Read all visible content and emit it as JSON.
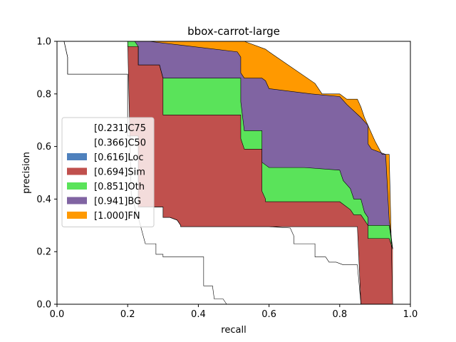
{
  "chart_data": {
    "type": "area",
    "title": "bbox-carrot-large",
    "xlabel": "recall",
    "ylabel": "precision",
    "xlim": [
      0.0,
      1.0
    ],
    "ylim": [
      0.0,
      1.0
    ],
    "xticks": [
      "0.0",
      "0.2",
      "0.4",
      "0.6",
      "0.8",
      "1.0"
    ],
    "yticks": [
      "0.0",
      "0.2",
      "0.4",
      "0.6",
      "0.8",
      "1.0"
    ],
    "grid": false,
    "legend_position": "center-left",
    "legend": [
      {
        "label": "[0.231]C75",
        "color": "#ffffff"
      },
      {
        "label": "[0.366]C50",
        "color": "#ffffff"
      },
      {
        "label": "[0.616]Loc",
        "color": "#4f81bd"
      },
      {
        "label": "[0.694]Sim",
        "color": "#c0504d"
      },
      {
        "label": "[0.851]Oth",
        "color": "#5ae35a"
      },
      {
        "label": "[0.941]BG",
        "color": "#8064a2"
      },
      {
        "label": "[1.000]FN",
        "color": "#ff9900"
      }
    ],
    "series": [
      {
        "name": "[0.231]C75",
        "color": "#ffffff",
        "x": [
          0,
          0.2,
          0.21,
          0.22,
          0.23,
          0.24,
          0.25,
          0.28,
          0.28,
          0.3,
          0.3,
          0.32,
          0.33,
          0.34,
          0.37,
          0.37,
          0.4,
          0.415,
          0.415,
          0.44,
          0.445,
          0.47,
          0.48
        ],
        "y": [
          1.0,
          1.0,
          0.42,
          0.37,
          0.33,
          0.28,
          0.23,
          0.23,
          0.19,
          0.19,
          0.18,
          0.18,
          0.18,
          0.18,
          0.18,
          0.18,
          0.18,
          0.18,
          0.07,
          0.07,
          0.02,
          0.02,
          0.0
        ]
      },
      {
        "name": "[0.366]C50",
        "color": "#ffffff",
        "x": [
          0,
          0.02,
          0.03,
          0.03,
          0.2,
          0.2,
          0.23,
          0.23,
          0.28,
          0.28,
          0.3,
          0.3,
          0.32,
          0.34,
          0.35,
          0.35,
          0.85,
          0.86
        ],
        "y": [
          1.0,
          1.0,
          0.94,
          0.875,
          0.875,
          0.64,
          0.64,
          0.37,
          0.37,
          0.37,
          0.37,
          0.33,
          0.33,
          0.32,
          0.3,
          0.295,
          0.295,
          0.0
        ]
      },
      {
        "name": "[0.616]Loc",
        "color": "#4f81bd",
        "x": [
          0,
          0.02,
          0.03,
          0.03,
          0.2,
          0.2,
          0.23,
          0.23,
          0.28,
          0.28,
          0.3,
          0.3,
          0.32,
          0.34,
          0.35,
          0.35,
          0.6,
          0.66,
          0.67,
          0.67,
          0.73,
          0.73,
          0.76,
          0.77,
          0.79,
          0.81,
          0.85,
          0.86
        ],
        "y": [
          1.0,
          1.0,
          0.94,
          0.875,
          0.875,
          0.64,
          0.64,
          0.37,
          0.37,
          0.37,
          0.37,
          0.33,
          0.33,
          0.32,
          0.3,
          0.295,
          0.295,
          0.29,
          0.26,
          0.23,
          0.23,
          0.18,
          0.18,
          0.16,
          0.16,
          0.15,
          0.15,
          0.0
        ]
      },
      {
        "name": "[0.694]Sim",
        "color": "#c0504d",
        "x": [
          0,
          0.02,
          0.2,
          0.2,
          0.23,
          0.23,
          0.29,
          0.3,
          0.3,
          0.52,
          0.52,
          0.53,
          0.53,
          0.58,
          0.58,
          0.59,
          0.59,
          0.8,
          0.83,
          0.84,
          0.86,
          0.87,
          0.88,
          0.88,
          0.94,
          0.95
        ],
        "y": [
          1.0,
          1.0,
          1.0,
          0.98,
          0.98,
          0.91,
          0.91,
          0.86,
          0.72,
          0.72,
          0.63,
          0.59,
          0.59,
          0.59,
          0.43,
          0.4,
          0.39,
          0.39,
          0.36,
          0.34,
          0.34,
          0.32,
          0.3,
          0.25,
          0.25,
          0.21
        ]
      },
      {
        "name": "[0.851]Oth",
        "color": "#5ae35a",
        "x": [
          0,
          0.22,
          0.23,
          0.23,
          0.29,
          0.3,
          0.3,
          0.52,
          0.52,
          0.53,
          0.53,
          0.58,
          0.58,
          0.59,
          0.6,
          0.7,
          0.8,
          0.81,
          0.83,
          0.84,
          0.86,
          0.87,
          0.88,
          0.88,
          0.94,
          0.95
        ],
        "y": [
          1.0,
          1.0,
          0.98,
          0.91,
          0.91,
          0.86,
          0.86,
          0.86,
          0.77,
          0.66,
          0.66,
          0.66,
          0.54,
          0.53,
          0.52,
          0.52,
          0.51,
          0.47,
          0.44,
          0.4,
          0.4,
          0.35,
          0.33,
          0.3,
          0.3,
          0.21
        ]
      },
      {
        "name": "[0.941]BG",
        "color": "#8064a2",
        "x": [
          0,
          0.22,
          0.25,
          0.26,
          0.51,
          0.52,
          0.52,
          0.53,
          0.58,
          0.59,
          0.6,
          0.72,
          0.8,
          0.82,
          0.86,
          0.88,
          0.88,
          0.89,
          0.93,
          0.94,
          0.95
        ],
        "y": [
          1.0,
          1.0,
          1.0,
          1.0,
          0.96,
          0.94,
          0.88,
          0.86,
          0.86,
          0.85,
          0.82,
          0.8,
          0.79,
          0.76,
          0.71,
          0.68,
          0.61,
          0.59,
          0.57,
          0.32,
          0.21
        ]
      },
      {
        "name": "[1.000]FN",
        "color": "#ff9900",
        "x": [
          0,
          0.26,
          0.53,
          0.59,
          0.6,
          0.73,
          0.75,
          0.8,
          0.82,
          0.85,
          0.86,
          0.87,
          0.88,
          0.9,
          0.92,
          0.94,
          0.95
        ],
        "y": [
          1.0,
          1.0,
          1.0,
          0.97,
          0.96,
          0.84,
          0.8,
          0.8,
          0.78,
          0.78,
          0.75,
          0.71,
          0.68,
          0.62,
          0.57,
          0.57,
          0.0
        ]
      }
    ]
  }
}
